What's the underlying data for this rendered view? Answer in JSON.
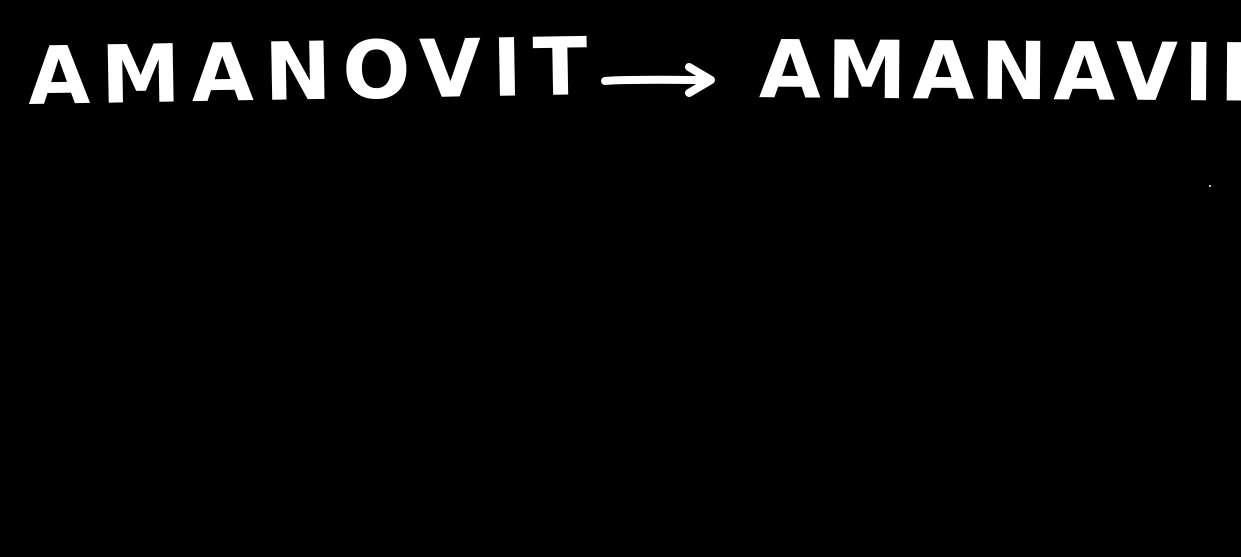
{
  "colors": {
    "background": "#000000",
    "ink": "#ffffff"
  },
  "handwriting": {
    "source_word": "AMANOVIT",
    "target_word": "AMANAVIR",
    "connector_icon": "right-arrow-icon"
  }
}
